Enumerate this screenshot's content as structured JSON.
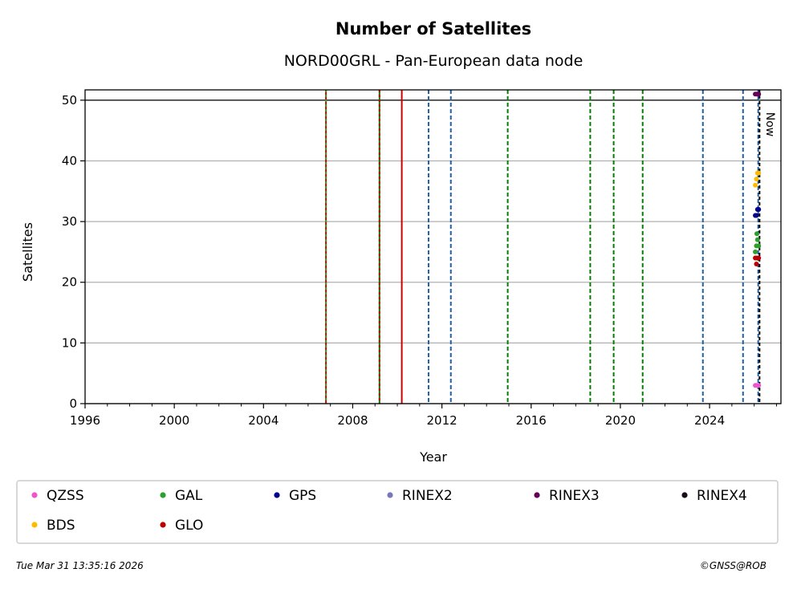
{
  "chart_data": {
    "type": "scatter",
    "title": "Number of Satellites",
    "subtitle": "NORD00GRL - Pan-European data node",
    "xlabel": "Year",
    "ylabel": "Satellites",
    "xlim": [
      1996.0,
      2027.2
    ],
    "ylim": [
      0,
      51.7
    ],
    "x_ticks": [
      "1996",
      "2000",
      "2004",
      "2008",
      "2012",
      "2016",
      "2020",
      "2024"
    ],
    "y_ticks": [
      "0",
      "10",
      "20",
      "30",
      "40",
      "50"
    ],
    "grid": "horizontal",
    "reference_line": 50,
    "now_label": "Now",
    "now_x": 2026.24,
    "event_lines": [
      {
        "x": 2006.8,
        "style": "solid",
        "color": "#cc0000",
        "overlay": "#2ca02c"
      },
      {
        "x": 2009.2,
        "style": "solid",
        "color": "#008000",
        "overlay": "#cc0000"
      },
      {
        "x": 2010.2,
        "style": "solid",
        "color": "#cc0000"
      },
      {
        "x": 2011.4,
        "style": "dashed",
        "color": "#1f5fa8"
      },
      {
        "x": 2012.4,
        "style": "dashed",
        "color": "#1f5fa8"
      },
      {
        "x": 2014.95,
        "style": "dashed",
        "color": "#008000"
      },
      {
        "x": 2018.65,
        "style": "dashed",
        "color": "#008000"
      },
      {
        "x": 2019.7,
        "style": "dashed",
        "color": "#008000"
      },
      {
        "x": 2021.0,
        "style": "dashed",
        "color": "#008000"
      },
      {
        "x": 2023.7,
        "style": "dashed",
        "color": "#1f5fa8"
      },
      {
        "x": 2025.5,
        "style": "dashed",
        "color": "#1f5fa8"
      },
      {
        "x": 2026.18,
        "style": "dashed",
        "color": "#1f5fa8"
      }
    ],
    "series": [
      {
        "name": "QZSS",
        "color": "#ee55cc",
        "points": [
          [
            2026.05,
            3
          ],
          [
            2026.12,
            3
          ],
          [
            2026.2,
            3
          ]
        ]
      },
      {
        "name": "GAL",
        "color": "#2ca02c",
        "points": [
          [
            2026.05,
            25
          ],
          [
            2026.1,
            26
          ],
          [
            2026.15,
            27
          ],
          [
            2026.2,
            26
          ],
          [
            2026.12,
            28
          ],
          [
            2026.08,
            24
          ]
        ]
      },
      {
        "name": "GPS",
        "color": "#000088",
        "points": [
          [
            2026.05,
            31
          ],
          [
            2026.1,
            31
          ],
          [
            2026.15,
            32
          ],
          [
            2026.2,
            32
          ]
        ]
      },
      {
        "name": "RINEX2",
        "color": "#7777bb",
        "points": []
      },
      {
        "name": "RINEX3",
        "color": "#660055",
        "points": [
          [
            2026.05,
            51
          ],
          [
            2026.12,
            51
          ],
          [
            2026.2,
            51
          ]
        ]
      },
      {
        "name": "RINEX4",
        "color": "#1a0a1a",
        "points": []
      },
      {
        "name": "BDS",
        "color": "#ffbb00",
        "points": [
          [
            2026.05,
            36
          ],
          [
            2026.1,
            37
          ],
          [
            2026.15,
            38
          ],
          [
            2026.2,
            38
          ]
        ]
      },
      {
        "name": "GLO",
        "color": "#bb0000",
        "points": [
          [
            2026.05,
            24
          ],
          [
            2026.1,
            23
          ],
          [
            2026.15,
            24
          ],
          [
            2026.2,
            24
          ]
        ]
      }
    ]
  },
  "footer": {
    "timestamp": "Tue Mar 31 13:35:16 2026",
    "credit": "©GNSS@ROB"
  }
}
